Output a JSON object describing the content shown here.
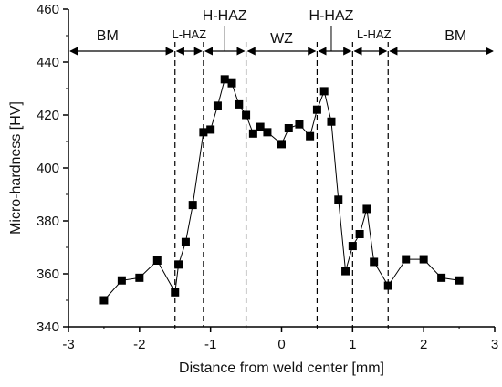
{
  "chart_data": {
    "type": "scatter",
    "title": "",
    "xlabel": "Distance from weld center [mm]",
    "ylabel": "Micro-hardness [HV]",
    "xlim": [
      -3,
      3
    ],
    "ylim": [
      340,
      460
    ],
    "xticks": [
      -3,
      -2,
      -1,
      0,
      1,
      2,
      3
    ],
    "yticks": [
      340,
      360,
      380,
      400,
      420,
      440,
      460
    ],
    "grid": false,
    "marker": "square",
    "connect_points": true,
    "colors": {
      "marker": "#000000",
      "line": "#000000",
      "axis": "#000000"
    },
    "series": [
      {
        "name": "",
        "x": [
          -2.5,
          -2.25,
          -2.0,
          -1.75,
          -1.5,
          -1.45,
          -1.35,
          -1.25,
          -1.1,
          -1.0,
          -0.9,
          -0.8,
          -0.7,
          -0.6,
          -0.5,
          -0.4,
          -0.3,
          -0.2,
          0.0,
          0.1,
          0.25,
          0.4,
          0.5,
          0.6,
          0.7,
          0.8,
          0.9,
          1.0,
          1.1,
          1.2,
          1.3,
          1.5,
          1.75,
          2.0,
          2.25,
          2.5
        ],
        "y": [
          350,
          357.5,
          358.5,
          365,
          353,
          363.5,
          372,
          386,
          413.5,
          414.5,
          423.5,
          433.5,
          432,
          424,
          420,
          413,
          415.5,
          413.5,
          409,
          415,
          416.5,
          412,
          422,
          429,
          417.5,
          388,
          361,
          370.5,
          375,
          384.5,
          364.5,
          355.5,
          365.5,
          365.5,
          358.5,
          357.5
        ]
      }
    ],
    "vlines": [
      -1.5,
      -1.1,
      -0.5,
      0.5,
      1.0,
      1.5
    ],
    "annotations": {
      "zones": [
        {
          "label": "BM",
          "from": -3,
          "to": -1.5
        },
        {
          "label": "L-HAZ",
          "from": -1.5,
          "to": -1.1
        },
        {
          "label": "H-HAZ",
          "from": -1.1,
          "to": -0.5
        },
        {
          "label": "WZ",
          "from": -0.5,
          "to": 0.5
        },
        {
          "label": "H-HAZ",
          "from": 0.5,
          "to": 1.0
        },
        {
          "label": "L-HAZ",
          "from": 1.0,
          "to": 1.5
        },
        {
          "label": "BM",
          "from": 1.5,
          "to": 3
        }
      ]
    }
  }
}
